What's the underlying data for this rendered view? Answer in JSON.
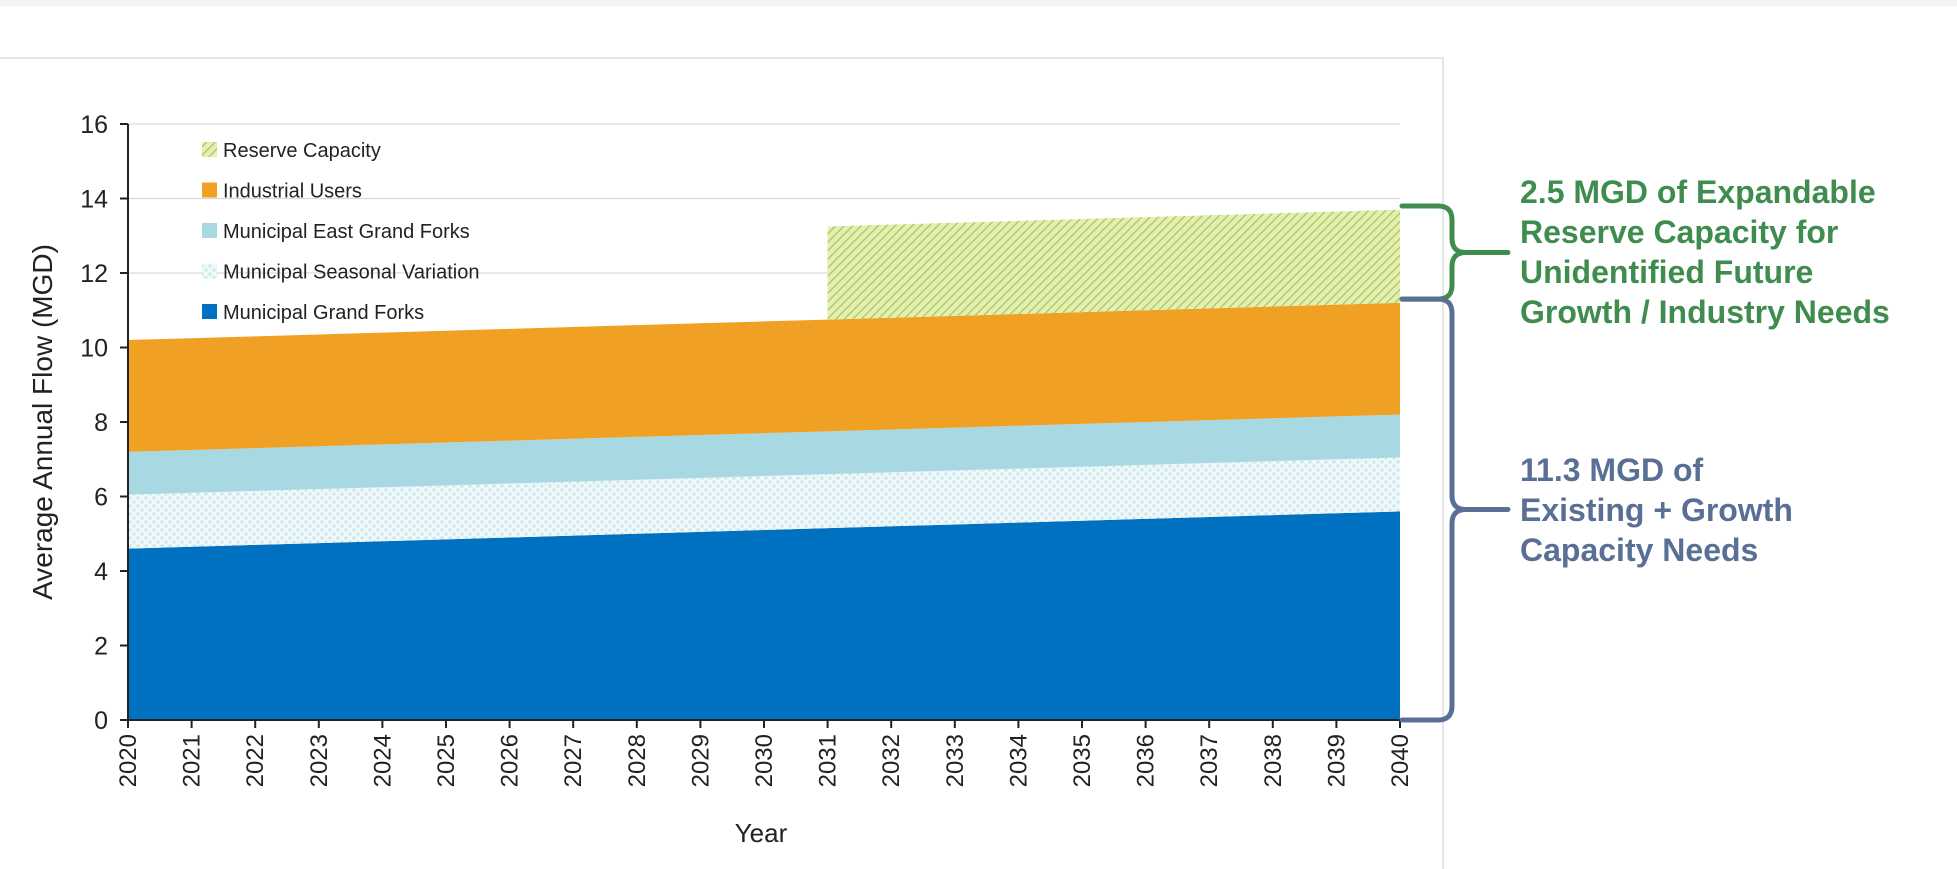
{
  "chart_data": {
    "type": "area",
    "stacked": true,
    "title": "",
    "xlabel": "Year",
    "ylabel": "Average Annual Flow (MGD)",
    "ylim": [
      0,
      16
    ],
    "yticks": [
      0,
      2,
      4,
      6,
      8,
      10,
      12,
      14,
      16
    ],
    "x": [
      2020,
      2021,
      2022,
      2023,
      2024,
      2025,
      2026,
      2027,
      2028,
      2029,
      2030,
      2031,
      2032,
      2033,
      2034,
      2035,
      2036,
      2037,
      2038,
      2039,
      2040
    ],
    "grid": true,
    "legend_position": "top-left",
    "series": [
      {
        "name": "Municipal Grand Forks",
        "color": "#0070c0",
        "pattern": "solid",
        "values": [
          4.6,
          4.65,
          4.7,
          4.75,
          4.8,
          4.85,
          4.9,
          4.95,
          5.0,
          5.05,
          5.1,
          5.15,
          5.2,
          5.25,
          5.3,
          5.35,
          5.4,
          5.45,
          5.5,
          5.55,
          5.6
        ]
      },
      {
        "name": "Municipal Seasonal Variation",
        "color": "#dff0f3",
        "pattern": "dots",
        "values": [
          1.45,
          1.45,
          1.45,
          1.45,
          1.45,
          1.45,
          1.45,
          1.45,
          1.45,
          1.45,
          1.45,
          1.45,
          1.45,
          1.45,
          1.45,
          1.45,
          1.45,
          1.45,
          1.45,
          1.45,
          1.45
        ]
      },
      {
        "name": "Municipal East Grand Forks",
        "color": "#a8d8e2",
        "pattern": "solid",
        "values": [
          1.15,
          1.15,
          1.15,
          1.15,
          1.15,
          1.15,
          1.15,
          1.15,
          1.15,
          1.15,
          1.15,
          1.15,
          1.15,
          1.15,
          1.15,
          1.15,
          1.15,
          1.15,
          1.15,
          1.15,
          1.15
        ]
      },
      {
        "name": "Industrial Users",
        "color": "#f0a023",
        "pattern": "solid",
        "values": [
          3.0,
          3.0,
          3.0,
          3.0,
          3.0,
          3.0,
          3.0,
          3.0,
          3.0,
          3.0,
          3.0,
          3.0,
          3.0,
          3.0,
          3.0,
          3.0,
          3.0,
          3.0,
          3.0,
          3.0,
          3.0
        ]
      },
      {
        "name": "Reserve Capacity",
        "color": "#c5dd6a",
        "pattern": "hatch",
        "values": [
          null,
          null,
          null,
          null,
          null,
          null,
          null,
          null,
          null,
          null,
          null,
          2.5,
          2.5,
          2.5,
          2.5,
          2.5,
          2.5,
          2.5,
          2.5,
          2.5,
          2.5
        ]
      }
    ],
    "legend_order": [
      "Reserve Capacity",
      "Industrial Users",
      "Municipal East Grand Forks",
      "Municipal Seasonal Variation",
      "Municipal Grand Forks"
    ]
  },
  "callouts": {
    "reserve": {
      "lines": [
        "2.5 MGD of Expandable",
        "Reserve Capacity for",
        "Unidentified Future",
        "Growth / Industry Needs"
      ],
      "color": "#3e8d4f",
      "range": [
        11.3,
        13.8
      ]
    },
    "existing": {
      "lines": [
        "11.3 MGD of",
        "Existing + Growth",
        "Capacity Needs"
      ],
      "color": "#5a6f96",
      "range": [
        0,
        11.3
      ]
    }
  }
}
